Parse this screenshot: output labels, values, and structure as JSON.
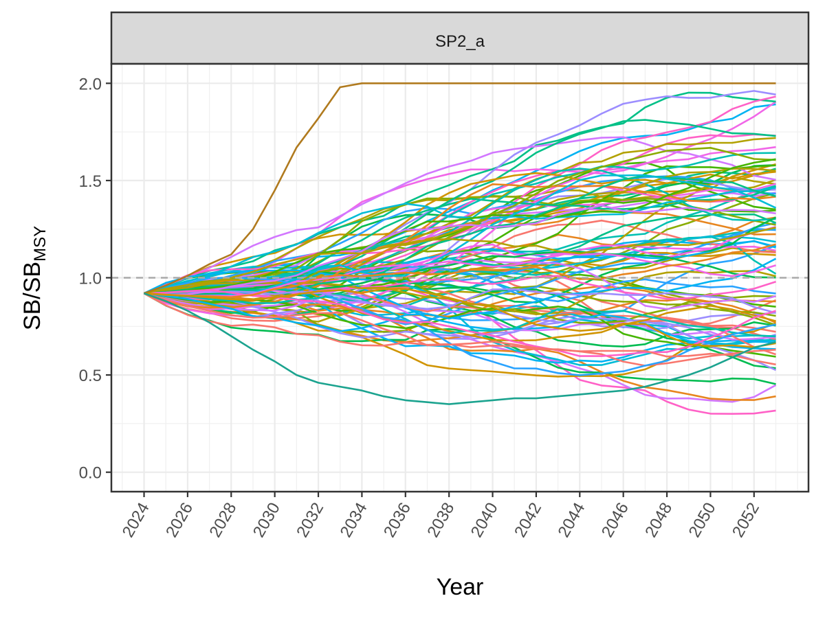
{
  "chart_data": {
    "type": "line",
    "facet": "SP2_a",
    "xlabel": "Year",
    "ylabel": "SB/SB",
    "ylabel_sub": "MSY",
    "x_ticks": [
      "2024",
      "2026",
      "2028",
      "2030",
      "2032",
      "2034",
      "2036",
      "2038",
      "2040",
      "2042",
      "2044",
      "2046",
      "2048",
      "2050",
      "2052"
    ],
    "y_ticks": [
      "0.0",
      "0.5",
      "1.0",
      "1.5",
      "2.0"
    ],
    "xlim": [
      2022.5,
      2054.5
    ],
    "ylim": [
      -0.1,
      2.1
    ],
    "x_start": 2024,
    "x_end": 2053,
    "start_value": 0.92,
    "reference_line": 1.0,
    "reference_color": "#aaaaaa",
    "strip_fill": "#d9d9d9",
    "grid": true,
    "n_series": 100,
    "series_note_values": {
      "upper_example": [
        0.92,
        0.96,
        1.01,
        1.07,
        1.12,
        1.25,
        1.45,
        1.67,
        1.82,
        1.98,
        2.0,
        2.0,
        2.0,
        2.0,
        2.0,
        2.0,
        2.0,
        2.0,
        2.0,
        2.0,
        2.0,
        2.0,
        2.0,
        2.0,
        2.0,
        2.0,
        2.0,
        2.0,
        2.0,
        2.0
      ],
      "lower_example": [
        0.92,
        0.88,
        0.83,
        0.77,
        0.7,
        0.63,
        0.57,
        0.5,
        0.46,
        0.44,
        0.42,
        0.39,
        0.37,
        0.36,
        0.35,
        0.36,
        0.37,
        0.38,
        0.38,
        0.39,
        0.4,
        0.41,
        0.42,
        0.44,
        0.47,
        0.5,
        0.54,
        0.59,
        0.64,
        0.67
      ]
    },
    "palette": [
      "#F8766D",
      "#E7851E",
      "#D09400",
      "#B2A100",
      "#89AC00",
      "#45B500",
      "#00BC51",
      "#00C087",
      "#00C0B2",
      "#00BCD6",
      "#00B3F2",
      "#29A3FF",
      "#9C8DFF",
      "#D277FF",
      "#F166E8",
      "#FF61C7"
    ],
    "seed": 20240612
  }
}
